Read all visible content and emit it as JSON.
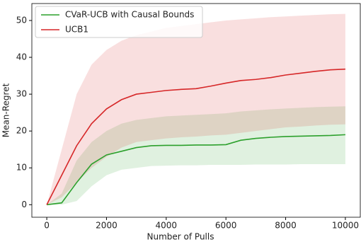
{
  "chart_data": {
    "type": "line",
    "x_label": "Number of Pulls",
    "y_label": "Mean-Regret",
    "x": [
      0,
      500,
      1000,
      1500,
      2000,
      2500,
      3000,
      3500,
      4000,
      4500,
      5000,
      5500,
      6000,
      6500,
      7000,
      7500,
      8000,
      8500,
      9000,
      9500,
      10000
    ],
    "series": [
      {
        "name": "CVaR-UCB with Causal Bounds",
        "color": "#2ca02c",
        "values": [
          0,
          0.5,
          6,
          11,
          13.5,
          14.5,
          15.5,
          16,
          16.1,
          16.1,
          16.2,
          16.2,
          16.3,
          17.5,
          18,
          18.3,
          18.5,
          18.6,
          18.7,
          18.8,
          19
        ],
        "lower": [
          0,
          0,
          1,
          5,
          8,
          9.5,
          10,
          10.5,
          10.6,
          10.7,
          10.7,
          10.8,
          10.8,
          10.8,
          10.9,
          10.9,
          10.9,
          11,
          11,
          11,
          11
        ],
        "upper": [
          0,
          3,
          12,
          17,
          20,
          22,
          23,
          23.5,
          24,
          24.2,
          24.4,
          24.6,
          24.8,
          25.3,
          25.6,
          25.9,
          26.1,
          26.3,
          26.5,
          26.6,
          26.7
        ]
      },
      {
        "name": "UCB1",
        "color": "#d62728",
        "values": [
          0,
          8,
          16,
          22,
          26,
          28.5,
          30,
          30.5,
          31,
          31.3,
          31.5,
          32.2,
          33,
          33.7,
          34,
          34.5,
          35.2,
          35.7,
          36.2,
          36.6,
          36.8
        ],
        "lower": [
          0,
          2,
          6,
          10,
          13,
          15.5,
          17,
          17.5,
          18,
          18.3,
          18.5,
          18.8,
          19,
          19.5,
          20,
          20.5,
          21,
          21.2,
          21.5,
          21.7,
          21.8
        ],
        "upper": [
          0,
          15,
          30,
          38,
          42,
          44.5,
          46,
          47,
          48,
          48.5,
          49,
          49.5,
          50,
          50.3,
          50.6,
          50.9,
          51.1,
          51.3,
          51.5,
          51.7,
          51.8
        ]
      }
    ],
    "xlim": [
      -500,
      10500
    ],
    "ylim": [
      -3.4,
      54.6
    ],
    "xticks": [
      0,
      2000,
      4000,
      6000,
      8000,
      10000
    ],
    "yticks": [
      0,
      10,
      20,
      30,
      40,
      50
    ],
    "grid": false,
    "legend": "upper-left",
    "band_opacity": 0.15
  }
}
